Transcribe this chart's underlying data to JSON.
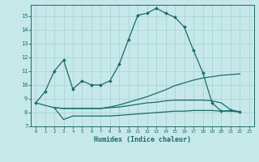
{
  "bg_color": "#c6e8e8",
  "grid_color": "#aad4d4",
  "line_color": "#1a6b6b",
  "xlabel": "Humidex (Indice chaleur)",
  "xlim": [
    -0.5,
    23.5
  ],
  "ylim": [
    7,
    15.8
  ],
  "xticks": [
    0,
    1,
    2,
    3,
    4,
    5,
    6,
    7,
    8,
    9,
    10,
    11,
    12,
    13,
    14,
    15,
    16,
    17,
    18,
    19,
    20,
    21,
    22,
    23
  ],
  "yticks": [
    7,
    8,
    9,
    10,
    11,
    12,
    13,
    14,
    15
  ],
  "line1_x": [
    0,
    1,
    2,
    3,
    4,
    5,
    6,
    7,
    8,
    9,
    10,
    11,
    12,
    13,
    14,
    15,
    16,
    17,
    18,
    19,
    20,
    21,
    22
  ],
  "line1_y": [
    8.7,
    9.5,
    11.0,
    11.8,
    9.7,
    10.3,
    10.0,
    10.0,
    10.3,
    11.5,
    13.3,
    15.05,
    15.2,
    15.55,
    15.2,
    14.9,
    14.2,
    12.5,
    10.9,
    8.7,
    8.1,
    8.15,
    8.05
  ],
  "line2_x": [
    2,
    3,
    4,
    5,
    6,
    7,
    8,
    9,
    10,
    11,
    12,
    13,
    14,
    15,
    16,
    17,
    18,
    19,
    20,
    21,
    22
  ],
  "line2_y": [
    8.35,
    8.3,
    8.3,
    8.3,
    8.3,
    8.3,
    8.4,
    8.55,
    8.75,
    8.95,
    9.15,
    9.4,
    9.65,
    9.95,
    10.15,
    10.35,
    10.5,
    10.6,
    10.7,
    10.75,
    10.8
  ],
  "line3_x": [
    0,
    2,
    3,
    4,
    5,
    6,
    7,
    8,
    9,
    10,
    11,
    12,
    13,
    14,
    15,
    16,
    17,
    18,
    19,
    20,
    21,
    22
  ],
  "line3_y": [
    8.7,
    8.35,
    7.5,
    7.75,
    7.75,
    7.75,
    7.75,
    7.75,
    7.8,
    7.85,
    7.9,
    7.95,
    8.0,
    8.05,
    8.1,
    8.1,
    8.15,
    8.15,
    8.15,
    8.1,
    8.1,
    8.05
  ],
  "line4_x": [
    2,
    3,
    4,
    5,
    6,
    7,
    8,
    9,
    10,
    11,
    12,
    13,
    14,
    15,
    16,
    17,
    18,
    19,
    20,
    21,
    22
  ],
  "line4_y": [
    8.35,
    8.3,
    8.3,
    8.3,
    8.3,
    8.3,
    8.35,
    8.4,
    8.5,
    8.6,
    8.7,
    8.75,
    8.85,
    8.9,
    8.9,
    8.9,
    8.9,
    8.85,
    8.7,
    8.2,
    8.05
  ]
}
